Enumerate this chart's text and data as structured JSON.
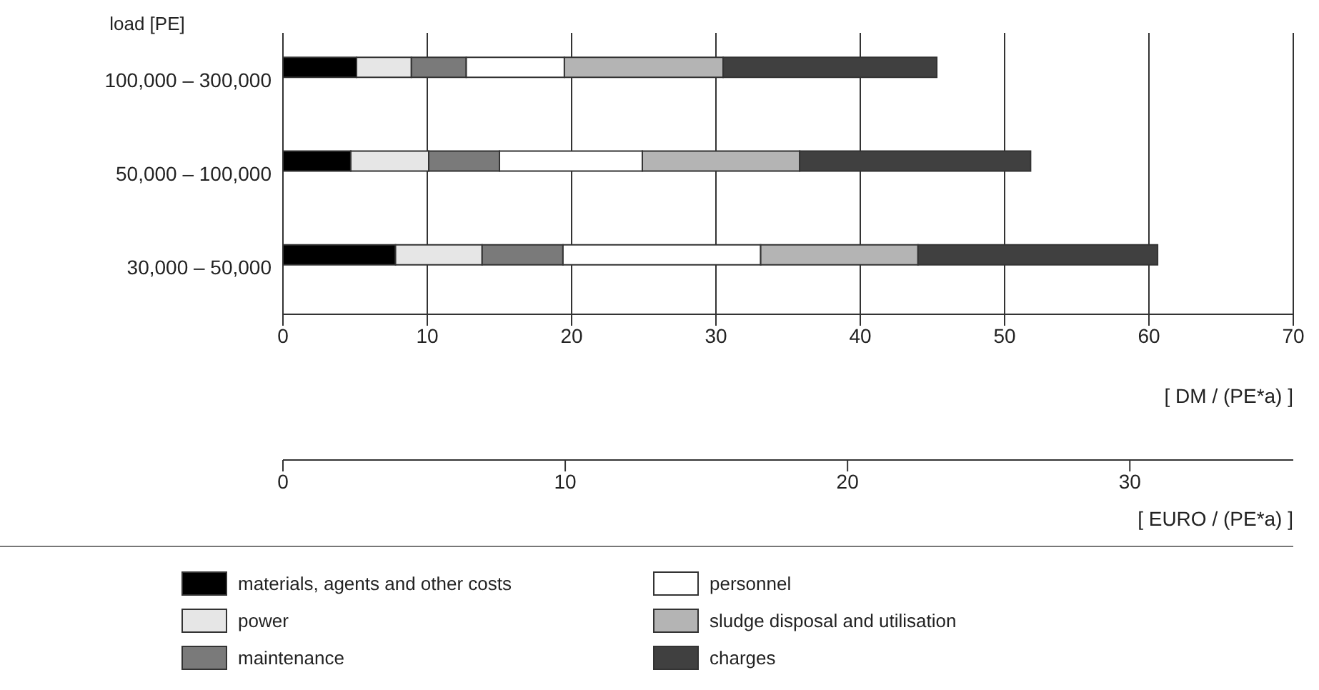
{
  "chart_data": {
    "type": "bar",
    "orientation": "horizontal",
    "stacked": true,
    "ylabel": "load [PE]",
    "xlabel": "[ DM / (PE*a) ]",
    "x2label": "[ EURO / (PE*a) ]",
    "categories": [
      "100,000 – 300,000",
      "50,000 – 100,000",
      "30,000 – 50,000"
    ],
    "series": [
      {
        "name": "materials, agents and other costs",
        "color": "#000000",
        "values": [
          5.1,
          4.7,
          7.8
        ]
      },
      {
        "name": "power",
        "color": "#e6e6e6",
        "values": [
          3.8,
          5.4,
          6.0
        ]
      },
      {
        "name": "maintenance",
        "color": "#7a7a7a",
        "values": [
          3.8,
          4.9,
          5.6
        ]
      },
      {
        "name": "personnel",
        "color": "#ffffff",
        "values": [
          6.8,
          9.9,
          13.7
        ]
      },
      {
        "name": "sludge disposal and utilisation",
        "color": "#b4b4b4",
        "values": [
          11.0,
          10.9,
          10.9
        ]
      },
      {
        "name": "charges",
        "color": "#404040",
        "values": [
          14.8,
          16.0,
          16.6
        ]
      }
    ],
    "xlim": [
      0,
      70
    ],
    "xticks": [
      0,
      10,
      20,
      30,
      40,
      50,
      60,
      70
    ],
    "x2lim": [
      0,
      35.79
    ],
    "x2ticks": [
      0,
      10,
      20,
      30
    ],
    "grid": "x",
    "legend": "bottom"
  }
}
